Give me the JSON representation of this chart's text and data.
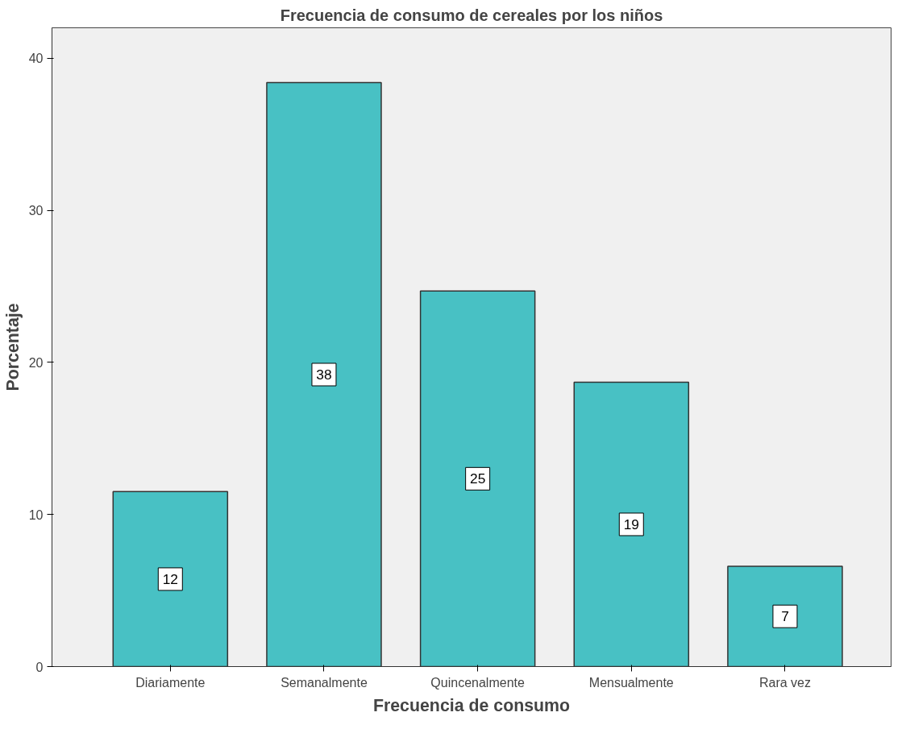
{
  "chart_data": {
    "type": "bar",
    "title": "Frecuencia de consumo de cereales por los niños",
    "xlabel": "Frecuencia de consumo",
    "ylabel": "Porcentaje",
    "categories": [
      "Diariamente",
      "Semanalmente",
      "Quincenalmente",
      "Mensualmente",
      "Rara vez"
    ],
    "values": [
      11.5,
      38.4,
      24.7,
      18.7,
      6.6
    ],
    "value_labels": [
      "12",
      "38",
      "25",
      "19",
      "7"
    ],
    "color": "#48c1c4",
    "ylim": [
      0,
      42
    ],
    "yticks": [
      0,
      10,
      20,
      30,
      40
    ],
    "grid": false
  }
}
